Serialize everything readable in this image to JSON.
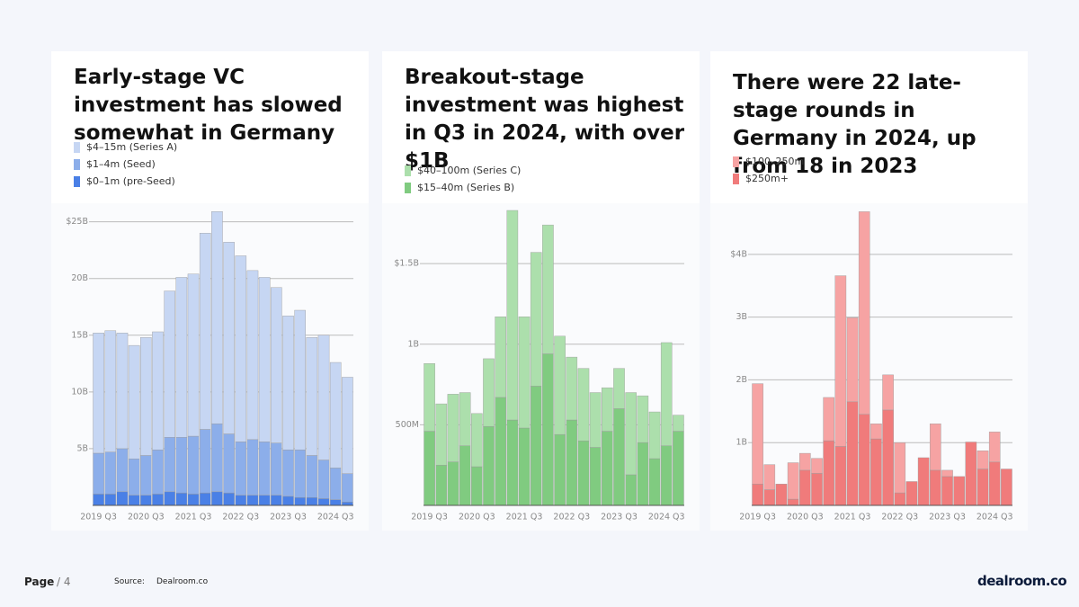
{
  "chart_data": [
    {
      "type": "stacked-bar",
      "title": "Early-stage VC investment has slowed somewhat in Germany",
      "categories": [
        "2019 Q3",
        null,
        null,
        null,
        "2020 Q3",
        null,
        null,
        null,
        "2021 Q3",
        null,
        null,
        null,
        "2022 Q3",
        null,
        null,
        null,
        "2023 Q3",
        null,
        null,
        null,
        "2024 Q3",
        null
      ],
      "series": [
        {
          "name": "$4–15m (Series A)",
          "color": "#c6d6f3",
          "values": [
            10.6,
            10.7,
            10.2,
            10.0,
            10.4,
            10.4,
            12.9,
            14.1,
            14.3,
            17.3,
            18.7,
            16.9,
            16.4,
            14.9,
            14.5,
            13.7,
            11.8,
            12.3,
            10.4,
            11.0,
            9.3,
            8.5
          ]
        },
        {
          "name": "$1–4m (Seed)",
          "color": "#8caeea",
          "values": [
            3.6,
            3.7,
            3.8,
            3.2,
            3.5,
            3.9,
            4.8,
            4.9,
            5.1,
            5.6,
            6.0,
            5.2,
            4.7,
            4.9,
            4.7,
            4.6,
            4.1,
            4.2,
            3.7,
            3.4,
            2.8,
            2.5
          ]
        },
        {
          "name": "$0–1m (pre-Seed)",
          "color": "#4a80e6",
          "values": [
            1.0,
            1.0,
            1.2,
            0.9,
            0.9,
            1.0,
            1.2,
            1.1,
            1.0,
            1.1,
            1.2,
            1.1,
            0.9,
            0.9,
            0.9,
            0.9,
            0.8,
            0.7,
            0.7,
            0.6,
            0.5,
            0.3
          ]
        }
      ],
      "ylim": [
        0,
        26
      ],
      "yticks": [
        {
          "value": 5,
          "label": "5B"
        },
        {
          "value": 10,
          "label": "10B"
        },
        {
          "value": 15,
          "label": "15B"
        },
        {
          "value": 20,
          "label": "20B"
        },
        {
          "value": 25,
          "label": "$25B"
        }
      ],
      "grid": true
    },
    {
      "type": "stacked-bar",
      "title": "Breakout-stage investment was highest in Q3 in 2024, with over $1B",
      "categories": [
        "2019 Q3",
        null,
        null,
        null,
        "2020 Q3",
        null,
        null,
        null,
        "2021 Q3",
        null,
        null,
        null,
        "2022 Q3",
        null,
        null,
        null,
        "2023 Q3",
        null,
        null,
        null,
        "2024 Q3",
        null
      ],
      "series": [
        {
          "name": "$40–100m (Series C)",
          "color": "#acdfac",
          "values": [
            0.42,
            0.38,
            0.42,
            0.33,
            0.33,
            0.42,
            0.5,
            1.3,
            0.69,
            0.83,
            0.8,
            0.61,
            0.39,
            0.45,
            0.34,
            0.27,
            0.25,
            0.51,
            0.29,
            0.29,
            0.64,
            0.1
          ]
        },
        {
          "name": "$15–40m (Series B)",
          "color": "#80cb80",
          "values": [
            0.46,
            0.25,
            0.27,
            0.37,
            0.24,
            0.49,
            0.67,
            0.53,
            0.48,
            0.74,
            0.94,
            0.44,
            0.53,
            0.4,
            0.36,
            0.46,
            0.6,
            0.19,
            0.39,
            0.29,
            0.37,
            0.46
          ]
        }
      ],
      "ylim": [
        0,
        1.83
      ],
      "yticks": [
        {
          "value": 0.5,
          "label": "500M"
        },
        {
          "value": 1,
          "label": "1B"
        },
        {
          "value": 1.5,
          "label": "$1.5B"
        }
      ],
      "grid": true
    },
    {
      "type": "stacked-bar",
      "title": "There were 22 late-stage rounds in Germany in 2024, up from 18 in 2023",
      "categories": [
        "2019 Q3",
        null,
        null,
        null,
        "2020 Q3",
        null,
        null,
        null,
        "2021 Q3",
        null,
        null,
        null,
        "2022 Q3",
        null,
        null,
        null,
        "2023 Q3",
        null,
        null,
        null,
        "2024 Q3",
        null
      ],
      "series": [
        {
          "name": "$100–250m",
          "color": "#f6a3a3",
          "values": [
            1.6,
            0.4,
            0,
            0.58,
            0.27,
            0.24,
            0.69,
            2.72,
            1.34,
            3.23,
            0.24,
            0.56,
            0.8,
            0,
            0,
            0.74,
            0.1,
            0,
            0,
            0.29,
            0.48,
            0
          ]
        },
        {
          "name": "$250m+",
          "color": "#f07b7b",
          "values": [
            0.34,
            0.25,
            0.34,
            0.1,
            0.56,
            0.51,
            1.03,
            0.94,
            1.65,
            1.45,
            1.06,
            1.52,
            0.2,
            0.38,
            0.76,
            0.56,
            0.46,
            0.46,
            1.01,
            0.58,
            0.69,
            0.58
          ]
        }
      ],
      "ylim": [
        0,
        4.7
      ],
      "yticks": [
        {
          "value": 1,
          "label": "1B"
        },
        {
          "value": 2,
          "label": "2B"
        },
        {
          "value": 3,
          "label": "3B"
        },
        {
          "value": 4,
          "label": "$4B"
        }
      ],
      "grid": true
    }
  ],
  "footer": {
    "page": "Page",
    "page_number": "/ 4",
    "source_label": "Source:",
    "source": "Dealroom.co",
    "logo": "dealroom.co"
  }
}
